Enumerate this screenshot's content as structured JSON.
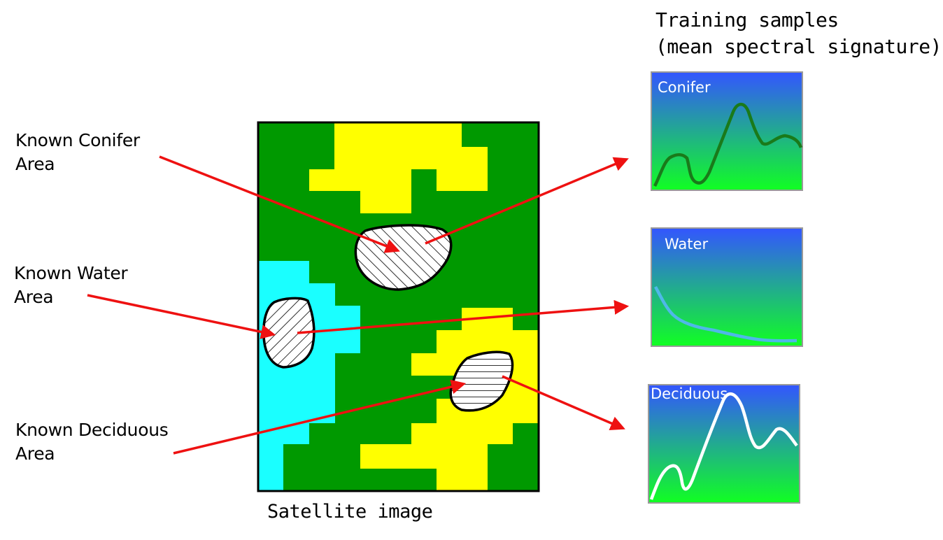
{
  "labels": {
    "conifer_area": "Known Conifer\nArea",
    "water_area": "Known Water\nArea",
    "deciduous_area": "Known Deciduous\nArea"
  },
  "satellite_caption": "Satellite image",
  "training_title": "Training samples\n(mean spectral signature)",
  "panels": {
    "conifer": {
      "title": "Conifer",
      "line_color": "#1a7a1a"
    },
    "water": {
      "title": "Water",
      "line_color": "#4fb8e8"
    },
    "deciduous": {
      "title": "Deciduous",
      "line_color": "#ffffff"
    }
  },
  "colors": {
    "conifer": "#009900",
    "deciduous": "#ffff00",
    "water": "#1affff",
    "arrow": "#ee1111",
    "panel_top": "#3355ff",
    "panel_bottom": "#11ff22"
  }
}
